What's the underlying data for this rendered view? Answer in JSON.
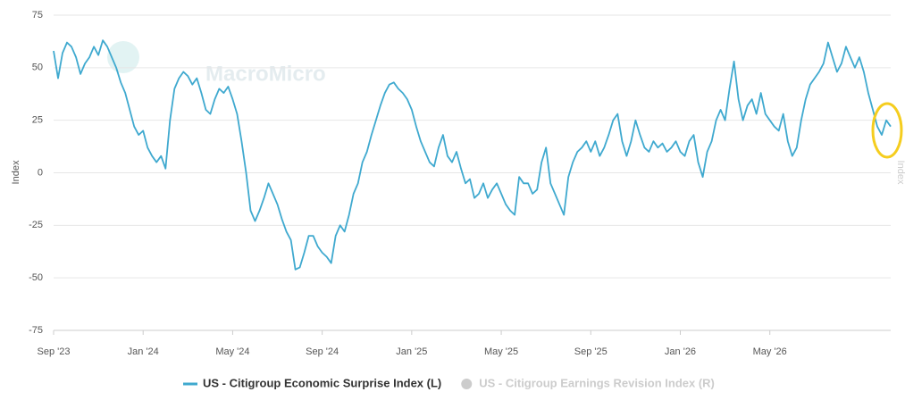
{
  "chart_data": {
    "type": "line",
    "watermark": "MacroMicro",
    "y_axis_label": "Index",
    "y2_axis_label": "Index",
    "xlim": [
      0,
      37.4
    ],
    "xticks": [
      {
        "value": 0,
        "label": "Sep '23"
      },
      {
        "value": 4,
        "label": "Jan '24"
      },
      {
        "value": 8,
        "label": "May '24"
      },
      {
        "value": 12,
        "label": "Sep '24"
      },
      {
        "value": 16,
        "label": "Jan '25"
      },
      {
        "value": 20,
        "label": "May '25"
      },
      {
        "value": 24,
        "label": "Sep '25"
      },
      {
        "value": 28,
        "label": "Jan '26"
      },
      {
        "value": 32,
        "label": "May '26"
      }
    ],
    "ylim": [
      -75,
      75
    ],
    "yticks": [
      -75,
      -50,
      -25,
      0,
      25,
      50,
      75
    ],
    "grid": true,
    "x": [
      0,
      0.2,
      0.4,
      0.6,
      0.8,
      1,
      1.2,
      1.4,
      1.6,
      1.8,
      2,
      2.2,
      2.4,
      2.6,
      2.8,
      3,
      3.2,
      3.4,
      3.6,
      3.8,
      4,
      4.2,
      4.4,
      4.6,
      4.8,
      5,
      5.2,
      5.4,
      5.6,
      5.8,
      6,
      6.2,
      6.4,
      6.6,
      6.8,
      7,
      7.2,
      7.4,
      7.6,
      7.8,
      8,
      8.2,
      8.4,
      8.6,
      8.8,
      9,
      9.2,
      9.4,
      9.6,
      9.8,
      10,
      10.2,
      10.4,
      10.6,
      10.8,
      11,
      11.2,
      11.4,
      11.6,
      11.8,
      12,
      12.2,
      12.4,
      12.6,
      12.8,
      13,
      13.2,
      13.4,
      13.6,
      13.8,
      14,
      14.2,
      14.4,
      14.6,
      14.8,
      15,
      15.2,
      15.4,
      15.6,
      15.8,
      16,
      16.2,
      16.4,
      16.6,
      16.8,
      17,
      17.2,
      17.4,
      17.6,
      17.8,
      18,
      18.2,
      18.4,
      18.6,
      18.8,
      19,
      19.2,
      19.4,
      19.6,
      19.8,
      20,
      20.2,
      20.4,
      20.6,
      20.8,
      21,
      21.2,
      21.4,
      21.6,
      21.8,
      22,
      22.2,
      22.4,
      22.6,
      22.8,
      23,
      23.2,
      23.4,
      23.6,
      23.8,
      24,
      24.2,
      24.4,
      24.6,
      24.8,
      25,
      25.2,
      25.4,
      25.6,
      25.8,
      26,
      26.2,
      26.4,
      26.6,
      26.8,
      27,
      27.2,
      27.4,
      27.6,
      27.8,
      28,
      28.2,
      28.4,
      28.6,
      28.8,
      29,
      29.2,
      29.4,
      29.6,
      29.8,
      30,
      30.2,
      30.4,
      30.6,
      30.8,
      31,
      31.2,
      31.4,
      31.6,
      31.8,
      32,
      32.2,
      32.4,
      32.6,
      32.8,
      33,
      33.2,
      33.4,
      33.6,
      33.8,
      34,
      34.2,
      34.4,
      34.6,
      34.8,
      35,
      35.2,
      35.4,
      35.6,
      35.8,
      36,
      36.2,
      36.4,
      36.6,
      36.8,
      37,
      37.2,
      37.4
    ],
    "series": [
      {
        "name": "US - Citigroup Economic Surprise Index (L)",
        "color": "#3fa9cf",
        "values": [
          58,
          45,
          57,
          62,
          60,
          55,
          47,
          52,
          55,
          60,
          56,
          63,
          60,
          55,
          50,
          43,
          38,
          30,
          22,
          18,
          20,
          12,
          8,
          5,
          8,
          2,
          25,
          40,
          45,
          48,
          46,
          42,
          45,
          38,
          30,
          28,
          35,
          40,
          38,
          41,
          35,
          28,
          15,
          0,
          -18,
          -23,
          -18,
          -12,
          -5,
          -10,
          -15,
          -22,
          -28,
          -32,
          -46,
          -45,
          -38,
          -30,
          -30,
          -35,
          -38,
          -40,
          -43,
          -30,
          -25,
          -28,
          -20,
          -10,
          -5,
          5,
          10,
          18,
          25,
          32,
          38,
          42,
          43,
          40,
          38,
          35,
          30,
          22,
          15,
          10,
          5,
          3,
          12,
          18,
          8,
          5,
          10,
          2,
          -5,
          -3,
          -12,
          -10,
          -5,
          -12,
          -8,
          -5,
          -10,
          -15,
          -18,
          -20,
          -2,
          -5,
          -5,
          -10,
          -8,
          5,
          12,
          -5,
          -10,
          -15,
          -20,
          -2,
          5,
          10,
          12,
          15,
          10,
          15,
          8,
          12,
          18,
          25,
          28,
          15,
          8,
          15,
          25,
          18,
          12,
          10,
          15,
          12,
          14,
          10,
          12,
          15,
          10,
          8,
          15,
          18,
          5,
          -2,
          10,
          15,
          25,
          30,
          25,
          40,
          53,
          35,
          25,
          32,
          35,
          28,
          38,
          28,
          25,
          22,
          20,
          28,
          15,
          8,
          12,
          25,
          35,
          42,
          45,
          48,
          52,
          62,
          55,
          48,
          52,
          60,
          55,
          50,
          55,
          48,
          38,
          30,
          22,
          18,
          25,
          22
        ]
      }
    ],
    "inactive_series": [
      {
        "name": "US - Citigroup Earnings Revision Index (R)",
        "color": "#cccccc"
      }
    ]
  }
}
